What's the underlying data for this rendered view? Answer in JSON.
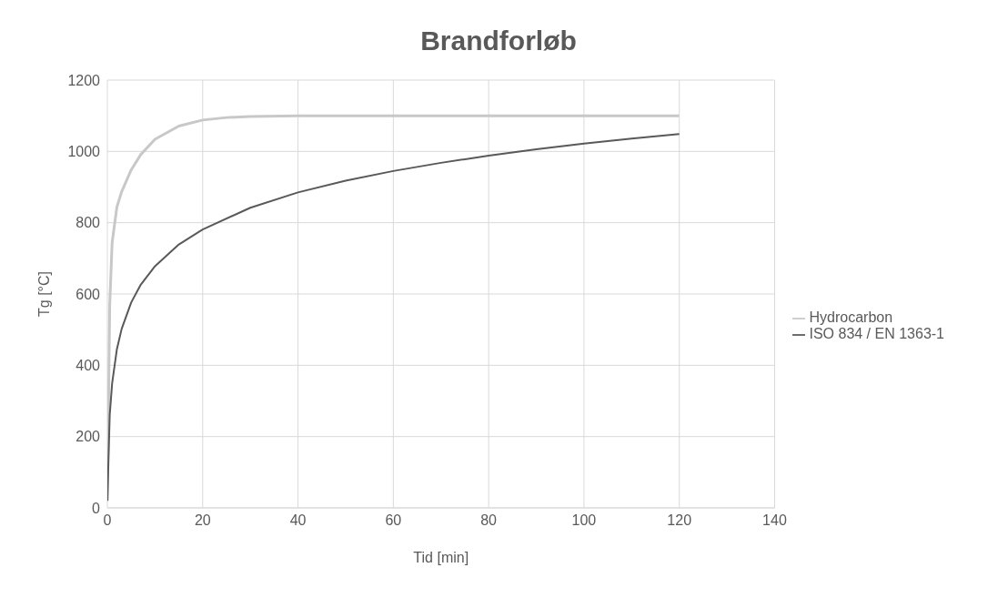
{
  "chart_data": {
    "type": "line",
    "title": "Brandforløb",
    "xlabel": "Tid [min]",
    "ylabel": "Tg [°C]",
    "xlim": [
      0,
      140
    ],
    "xticks": [
      0,
      20,
      40,
      60,
      80,
      100,
      120,
      140
    ],
    "ylim": [
      0,
      1200
    ],
    "yticks": [
      0,
      200,
      400,
      600,
      800,
      1000,
      1200
    ],
    "grid": true,
    "legend": "right",
    "marker": "none",
    "line_style": "solid",
    "series": [
      {
        "name": "ISO 834 / EN 1363-1",
        "color": "#595959",
        "x": [
          0,
          0.5,
          1,
          2,
          3,
          5,
          7,
          10,
          15,
          20,
          30,
          40,
          50,
          60,
          70,
          80,
          90,
          100,
          110,
          120
        ],
        "values": [
          20,
          261,
          349,
          445,
          502,
          576,
          626,
          678,
          739,
          781,
          842,
          885,
          918,
          945,
          968,
          988,
          1006,
          1022,
          1036,
          1049
        ]
      },
      {
        "name": "Hydrocarbon",
        "color": "#c8c8c8",
        "x": [
          0,
          0.5,
          1,
          2,
          3,
          5,
          7,
          10,
          15,
          20,
          25,
          30,
          40,
          60,
          80,
          100,
          120
        ],
        "values": [
          20,
          569,
          744,
          844,
          887,
          948,
          991,
          1034,
          1071,
          1088,
          1095,
          1098,
          1100,
          1100,
          1100,
          1100,
          1100
        ]
      }
    ]
  }
}
